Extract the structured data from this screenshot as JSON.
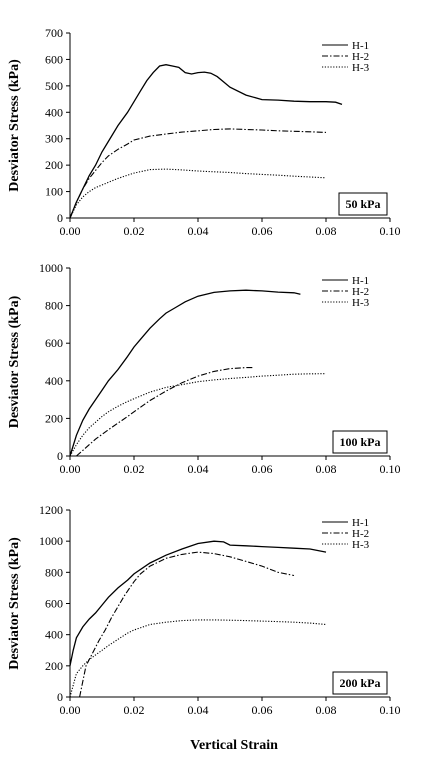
{
  "figure": {
    "xlabel": "Vertical Strain"
  },
  "chart_data": [
    {
      "type": "line",
      "ylabel": "Desviator Stress (kPa)",
      "badge": "50 kPa",
      "xlim": [
        0,
        0.1
      ],
      "ylim": [
        0,
        700
      ],
      "xticks": [
        "0.00",
        "0.02",
        "0.04",
        "0.06",
        "0.08",
        "0.10"
      ],
      "yticks": [
        "0",
        "100",
        "200",
        "300",
        "400",
        "500",
        "600",
        "700"
      ],
      "legend": "top-right",
      "series": [
        {
          "name": "H-1",
          "dash": "solid",
          "x": [
            0,
            0.002,
            0.004,
            0.006,
            0.008,
            0.01,
            0.012,
            0.015,
            0.018,
            0.02,
            0.022,
            0.024,
            0.026,
            0.028,
            0.03,
            0.032,
            0.034,
            0.036,
            0.038,
            0.04,
            0.042,
            0.044,
            0.046,
            0.048,
            0.05,
            0.055,
            0.06,
            0.065,
            0.07,
            0.075,
            0.08,
            0.083,
            0.085
          ],
          "y": [
            0,
            60,
            110,
            160,
            200,
            250,
            290,
            350,
            400,
            440,
            480,
            520,
            550,
            575,
            580,
            575,
            570,
            550,
            545,
            550,
            552,
            548,
            535,
            515,
            495,
            465,
            448,
            446,
            442,
            440,
            440,
            438,
            430
          ]
        },
        {
          "name": "H-2",
          "dash": "dashdot",
          "x": [
            0,
            0.002,
            0.004,
            0.006,
            0.008,
            0.01,
            0.012,
            0.015,
            0.018,
            0.02,
            0.025,
            0.03,
            0.035,
            0.04,
            0.045,
            0.05,
            0.055,
            0.06,
            0.065,
            0.07,
            0.075,
            0.08
          ],
          "y": [
            0,
            60,
            110,
            150,
            180,
            210,
            235,
            260,
            280,
            295,
            310,
            318,
            325,
            330,
            335,
            337,
            335,
            333,
            330,
            328,
            326,
            324
          ]
        },
        {
          "name": "H-3",
          "dash": "dotted",
          "x": [
            0,
            0.002,
            0.004,
            0.006,
            0.008,
            0.01,
            0.012,
            0.015,
            0.018,
            0.02,
            0.025,
            0.03,
            0.035,
            0.04,
            0.045,
            0.05,
            0.055,
            0.06,
            0.065,
            0.07,
            0.075,
            0.08
          ],
          "y": [
            0,
            50,
            80,
            100,
            115,
            125,
            135,
            150,
            162,
            170,
            183,
            185,
            182,
            178,
            175,
            172,
            168,
            165,
            162,
            158,
            155,
            152
          ]
        }
      ]
    },
    {
      "type": "line",
      "ylabel": "Desviator Stress (kPa)",
      "badge": "100 kPa",
      "xlim": [
        0,
        0.1
      ],
      "ylim": [
        0,
        1000
      ],
      "xticks": [
        "0.00",
        "0.02",
        "0.04",
        "0.06",
        "0.08",
        "0.10"
      ],
      "yticks": [
        "0",
        "200",
        "400",
        "600",
        "800",
        "1000"
      ],
      "legend": "top-right",
      "series": [
        {
          "name": "H-1",
          "dash": "solid",
          "x": [
            0,
            0.002,
            0.004,
            0.006,
            0.008,
            0.01,
            0.012,
            0.015,
            0.018,
            0.02,
            0.022,
            0.025,
            0.028,
            0.03,
            0.033,
            0.036,
            0.04,
            0.045,
            0.05,
            0.055,
            0.06,
            0.065,
            0.07,
            0.072
          ],
          "y": [
            0,
            110,
            190,
            250,
            300,
            350,
            400,
            460,
            530,
            580,
            620,
            680,
            730,
            760,
            790,
            820,
            850,
            870,
            878,
            882,
            878,
            872,
            868,
            860
          ]
        },
        {
          "name": "H-2",
          "dash": "dashdot",
          "x": [
            0.002,
            0.004,
            0.006,
            0.008,
            0.01,
            0.012,
            0.015,
            0.018,
            0.02,
            0.025,
            0.03,
            0.035,
            0.04,
            0.045,
            0.05,
            0.055,
            0.057
          ],
          "y": [
            0,
            30,
            60,
            90,
            115,
            140,
            175,
            210,
            235,
            295,
            345,
            390,
            425,
            450,
            465,
            470,
            470
          ]
        },
        {
          "name": "H-3",
          "dash": "dotted",
          "x": [
            0,
            0.002,
            0.004,
            0.006,
            0.008,
            0.01,
            0.012,
            0.015,
            0.018,
            0.02,
            0.025,
            0.03,
            0.035,
            0.04,
            0.045,
            0.05,
            0.055,
            0.06,
            0.065,
            0.07,
            0.075,
            0.08
          ],
          "y": [
            0,
            60,
            110,
            150,
            180,
            210,
            235,
            265,
            290,
            305,
            340,
            365,
            380,
            395,
            405,
            412,
            418,
            425,
            430,
            435,
            437,
            438
          ]
        }
      ]
    },
    {
      "type": "line",
      "ylabel": "Desviator Stress (kPa)",
      "badge": "200 kPa",
      "xlim": [
        0,
        0.1
      ],
      "ylim": [
        0,
        1200
      ],
      "xticks": [
        "0.00",
        "0.02",
        "0.04",
        "0.06",
        "0.08",
        "0.10"
      ],
      "yticks": [
        "0",
        "200",
        "400",
        "600",
        "800",
        "1000",
        "1200"
      ],
      "legend": "top-right",
      "series": [
        {
          "name": "H-1",
          "dash": "solid",
          "x": [
            0,
            0.001,
            0.002,
            0.004,
            0.006,
            0.008,
            0.01,
            0.012,
            0.015,
            0.018,
            0.02,
            0.025,
            0.03,
            0.035,
            0.04,
            0.045,
            0.048,
            0.05,
            0.055,
            0.06,
            0.065,
            0.07,
            0.075,
            0.08
          ],
          "y": [
            200,
            300,
            380,
            450,
            500,
            540,
            590,
            640,
            700,
            750,
            790,
            860,
            910,
            950,
            985,
            1000,
            995,
            975,
            970,
            965,
            960,
            955,
            950,
            930
          ]
        },
        {
          "name": "H-2",
          "dash": "dashdot",
          "x": [
            0.003,
            0.005,
            0.007,
            0.009,
            0.011,
            0.013,
            0.015,
            0.017,
            0.02,
            0.022,
            0.025,
            0.03,
            0.035,
            0.04,
            0.045,
            0.05,
            0.055,
            0.06,
            0.065,
            0.07
          ],
          "y": [
            0,
            200,
            280,
            360,
            430,
            510,
            580,
            650,
            740,
            790,
            840,
            890,
            915,
            930,
            920,
            900,
            870,
            840,
            800,
            780
          ]
        },
        {
          "name": "H-3",
          "dash": "dotted",
          "x": [
            0,
            0.002,
            0.004,
            0.006,
            0.008,
            0.01,
            0.012,
            0.015,
            0.018,
            0.02,
            0.025,
            0.03,
            0.035,
            0.04,
            0.045,
            0.05,
            0.055,
            0.06,
            0.065,
            0.07,
            0.075,
            0.08
          ],
          "y": [
            0,
            150,
            200,
            240,
            270,
            300,
            330,
            370,
            410,
            430,
            465,
            480,
            490,
            495,
            495,
            493,
            490,
            487,
            484,
            480,
            474,
            465
          ]
        }
      ]
    }
  ]
}
